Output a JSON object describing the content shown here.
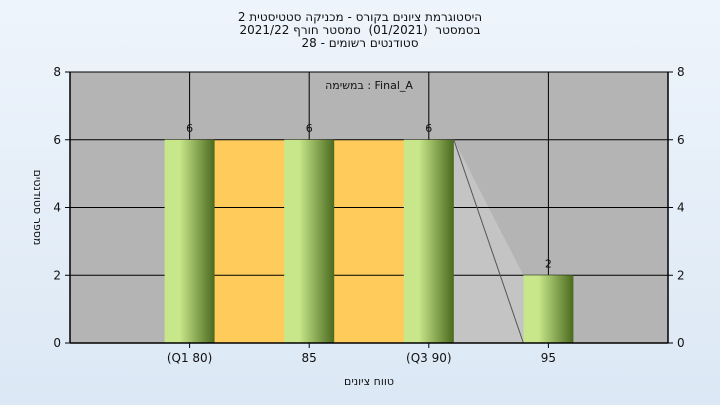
{
  "title_lines": [
    "היסטוגרמת ציונים בקורס - מכניקה סטטיסטית 2",
    "בסמסטר  (01/2021)  סמסטר חורף 2021/22",
    "סטודנטים רשומים - 28"
  ],
  "chart_data": {
    "type": "bar",
    "categories": [
      "(Q1 80)",
      "85",
      "(Q3 90)",
      "95"
    ],
    "values": [
      6,
      6,
      6,
      2
    ],
    "data_labels": [
      "6",
      "6",
      "6",
      "2"
    ],
    "ylim": [
      0,
      8
    ],
    "yticks": [
      "0",
      "2",
      "4",
      "6",
      "8"
    ],
    "xlabel": "טווח ציונים",
    "ylabel": "מספר סטודנטים",
    "legend": "Final_A : במשימה",
    "iqr_band": [
      "(Q1 80)",
      "(Q3 90)"
    ],
    "grid": true,
    "colors": {
      "plot_bg": "#b4b4b4",
      "iqr_band": "#ffcc5c",
      "bar_light": "#c8e68a",
      "bar_dark": "#4a6a1e",
      "connector": "#555555",
      "axis": "#000000"
    }
  }
}
